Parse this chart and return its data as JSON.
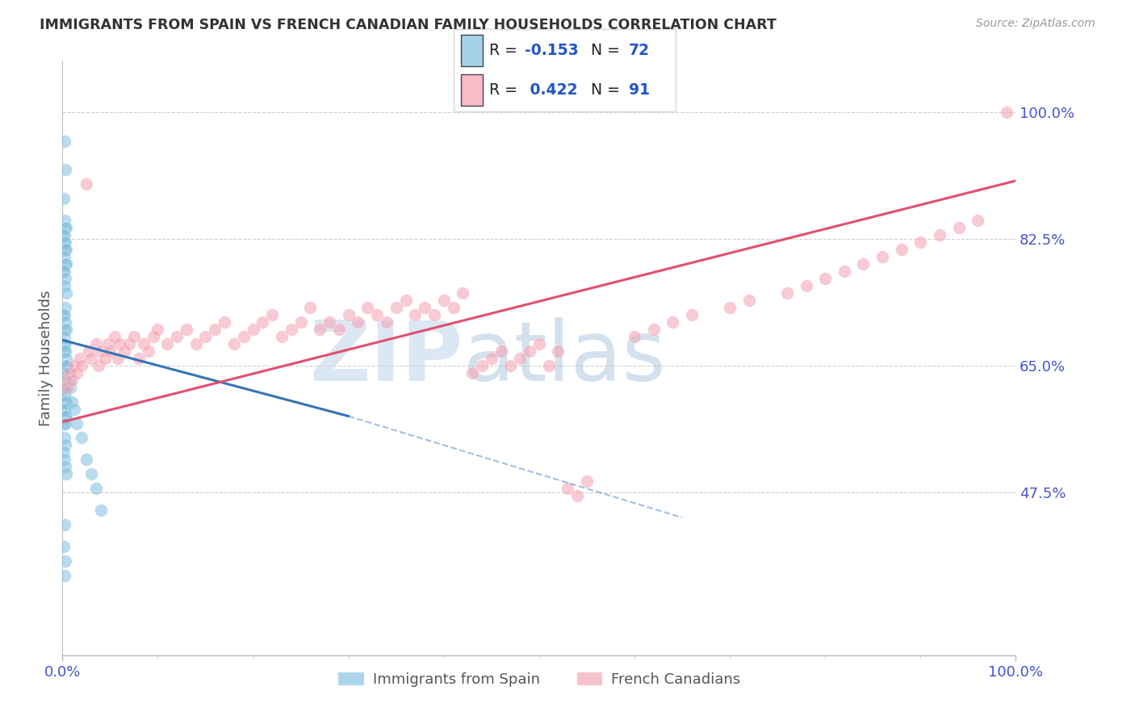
{
  "title": "IMMIGRANTS FROM SPAIN VS FRENCH CANADIAN FAMILY HOUSEHOLDS CORRELATION CHART",
  "source": "Source: ZipAtlas.com",
  "ylabel_label": "Family Households",
  "ytick_values": [
    0.475,
    0.65,
    0.825,
    1.0
  ],
  "ytick_labels": [
    "47.5%",
    "65.0%",
    "82.5%",
    "100.0%"
  ],
  "xtick_values": [
    0.0,
    1.0
  ],
  "xtick_labels": [
    "0.0%",
    "100.0%"
  ],
  "xlim": [
    0.0,
    1.0
  ],
  "ylim": [
    0.25,
    1.07
  ],
  "blue_R": -0.153,
  "blue_N": 72,
  "pink_R": 0.422,
  "pink_N": 91,
  "blue_color": "#7fbfdf",
  "pink_color": "#f4a0b0",
  "blue_line_color": "#3575b5",
  "pink_line_color": "#e05070",
  "blue_label": "Immigrants from Spain",
  "pink_label": "French Canadians",
  "watermark_zip": "ZIP",
  "watermark_atlas": "atlas",
  "background_color": "#ffffff",
  "grid_color": "#cccccc",
  "title_color": "#333333",
  "axis_tick_color": "#4455cc",
  "legend_text_color": "#222222",
  "legend_R_color": "#2255cc",
  "legend_N_color": "#2255cc",
  "blue_x": [
    0.002,
    0.003,
    0.001,
    0.002,
    0.004,
    0.003,
    0.002,
    0.001,
    0.003,
    0.002,
    0.004,
    0.003,
    0.002,
    0.003,
    0.004,
    0.002,
    0.001,
    0.003,
    0.002,
    0.004,
    0.003,
    0.002,
    0.001,
    0.003,
    0.002,
    0.004,
    0.002,
    0.003,
    0.001,
    0.002,
    0.003,
    0.004,
    0.002,
    0.003,
    0.001,
    0.002,
    0.004,
    0.003,
    0.002,
    0.001,
    0.003,
    0.002,
    0.004,
    0.003,
    0.001,
    0.002,
    0.003,
    0.004,
    0.002,
    0.003,
    0.005,
    0.006,
    0.007,
    0.008,
    0.01,
    0.012,
    0.015,
    0.02,
    0.025,
    0.03,
    0.002,
    0.003,
    0.001,
    0.002,
    0.003,
    0.004,
    0.002,
    0.001,
    0.003,
    0.002,
    0.035,
    0.04
  ],
  "blue_y": [
    0.96,
    0.92,
    0.88,
    0.85,
    0.84,
    0.84,
    0.83,
    0.83,
    0.82,
    0.82,
    0.81,
    0.81,
    0.8,
    0.79,
    0.79,
    0.78,
    0.78,
    0.77,
    0.76,
    0.75,
    0.73,
    0.72,
    0.72,
    0.71,
    0.7,
    0.7,
    0.69,
    0.68,
    0.68,
    0.67,
    0.67,
    0.66,
    0.65,
    0.65,
    0.64,
    0.64,
    0.63,
    0.63,
    0.62,
    0.62,
    0.61,
    0.61,
    0.6,
    0.6,
    0.59,
    0.59,
    0.58,
    0.58,
    0.57,
    0.57,
    0.65,
    0.64,
    0.63,
    0.62,
    0.6,
    0.59,
    0.57,
    0.55,
    0.52,
    0.5,
    0.55,
    0.54,
    0.53,
    0.52,
    0.51,
    0.5,
    0.43,
    0.4,
    0.38,
    0.36,
    0.48,
    0.45
  ],
  "pink_x": [
    0.003,
    0.005,
    0.008,
    0.01,
    0.012,
    0.015,
    0.018,
    0.02,
    0.025,
    0.028,
    0.03,
    0.035,
    0.038,
    0.04,
    0.045,
    0.048,
    0.05,
    0.055,
    0.058,
    0.06,
    0.065,
    0.07,
    0.075,
    0.08,
    0.085,
    0.09,
    0.095,
    0.1,
    0.11,
    0.12,
    0.13,
    0.14,
    0.15,
    0.16,
    0.17,
    0.18,
    0.19,
    0.2,
    0.21,
    0.22,
    0.23,
    0.24,
    0.25,
    0.26,
    0.27,
    0.28,
    0.29,
    0.3,
    0.31,
    0.32,
    0.33,
    0.34,
    0.35,
    0.36,
    0.37,
    0.38,
    0.39,
    0.4,
    0.41,
    0.42,
    0.43,
    0.44,
    0.45,
    0.46,
    0.47,
    0.48,
    0.49,
    0.5,
    0.51,
    0.52,
    0.53,
    0.54,
    0.55,
    0.6,
    0.62,
    0.64,
    0.66,
    0.7,
    0.72,
    0.76,
    0.78,
    0.8,
    0.82,
    0.84,
    0.86,
    0.88,
    0.9,
    0.92,
    0.94,
    0.96,
    0.99
  ],
  "pink_y": [
    0.63,
    0.62,
    0.64,
    0.63,
    0.65,
    0.64,
    0.66,
    0.65,
    0.9,
    0.67,
    0.66,
    0.68,
    0.65,
    0.67,
    0.66,
    0.68,
    0.67,
    0.69,
    0.66,
    0.68,
    0.67,
    0.68,
    0.69,
    0.66,
    0.68,
    0.67,
    0.69,
    0.7,
    0.68,
    0.69,
    0.7,
    0.68,
    0.69,
    0.7,
    0.71,
    0.68,
    0.69,
    0.7,
    0.71,
    0.72,
    0.69,
    0.7,
    0.71,
    0.73,
    0.7,
    0.71,
    0.7,
    0.72,
    0.71,
    0.73,
    0.72,
    0.71,
    0.73,
    0.74,
    0.72,
    0.73,
    0.72,
    0.74,
    0.73,
    0.75,
    0.64,
    0.65,
    0.66,
    0.67,
    0.65,
    0.66,
    0.67,
    0.68,
    0.65,
    0.67,
    0.48,
    0.47,
    0.49,
    0.69,
    0.7,
    0.71,
    0.72,
    0.73,
    0.74,
    0.75,
    0.76,
    0.77,
    0.78,
    0.79,
    0.8,
    0.81,
    0.82,
    0.83,
    0.84,
    0.85,
    1.0
  ]
}
